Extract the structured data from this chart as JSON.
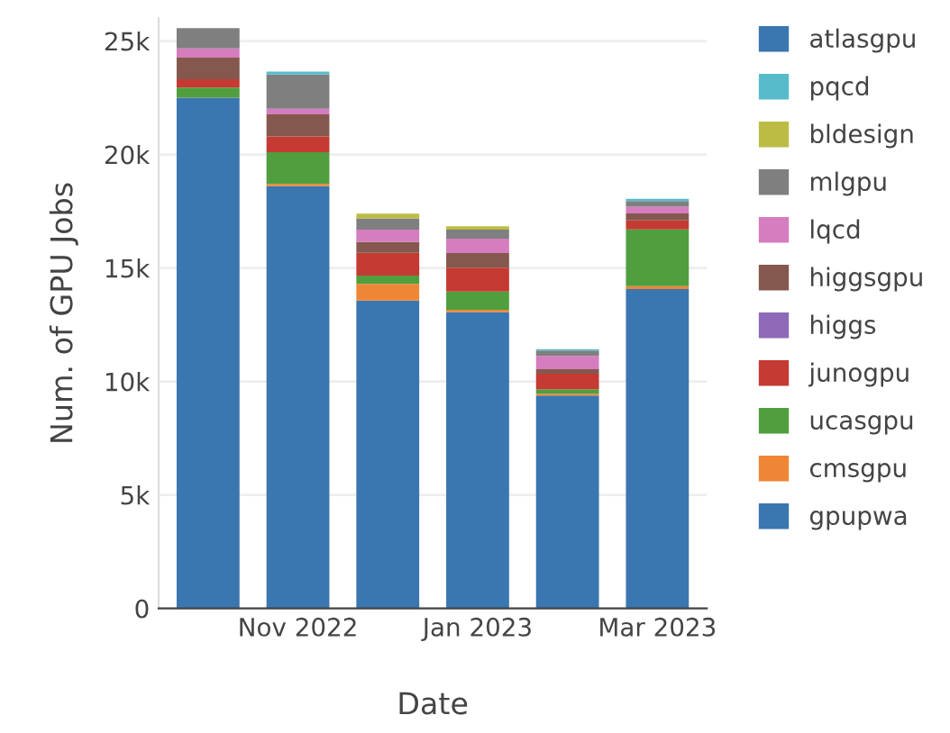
{
  "chart_data": {
    "type": "bar",
    "stacked": true,
    "xlabel": "Date",
    "ylabel": "Num. of GPU Jobs",
    "categories": [
      null,
      "Nov 2022",
      null,
      "Jan 2023",
      null,
      "Mar 2023"
    ],
    "series": [
      {
        "name": "gpupwa",
        "color": "#3a76af",
        "values": [
          22500,
          18600,
          13560,
          13060,
          9380,
          14070
        ]
      },
      {
        "name": "cmsgpu",
        "color": "#ef8636",
        "values": [
          0,
          100,
          740,
          100,
          80,
          130
        ]
      },
      {
        "name": "ucasgpu",
        "color": "#519e3e",
        "values": [
          450,
          1400,
          370,
          800,
          200,
          2500
        ]
      },
      {
        "name": "junogpu",
        "color": "#c53a32",
        "values": [
          370,
          700,
          1000,
          1050,
          680,
          400
        ]
      },
      {
        "name": "higgs",
        "color": "#8d69b8",
        "values": [
          0,
          0,
          0,
          0,
          0,
          0
        ]
      },
      {
        "name": "higgsgpu",
        "color": "#84584e",
        "values": [
          950,
          970,
          470,
          650,
          200,
          300
        ]
      },
      {
        "name": "lqcd",
        "color": "#d57dbe",
        "values": [
          400,
          250,
          550,
          630,
          580,
          300
        ]
      },
      {
        "name": "mlgpu",
        "color": "#7f7f7f",
        "values": [
          900,
          1500,
          500,
          400,
          240,
          250
        ]
      },
      {
        "name": "bldesign",
        "color": "#bcbc45",
        "values": [
          0,
          0,
          200,
          150,
          0,
          0
        ]
      },
      {
        "name": "pqcd",
        "color": "#58bbcc",
        "values": [
          0,
          130,
          0,
          0,
          60,
          100
        ]
      },
      {
        "name": "atlasgpu",
        "color": "#3a76af",
        "values": [
          0,
          0,
          0,
          0,
          0,
          0
        ]
      }
    ],
    "ylim": [
      0,
      26000
    ],
    "yticks": [
      {
        "value": 0,
        "label": "0"
      },
      {
        "value": 5000,
        "label": "5k"
      },
      {
        "value": 10000,
        "label": "10k"
      },
      {
        "value": 15000,
        "label": "15k"
      },
      {
        "value": 20000,
        "label": "20k"
      },
      {
        "value": 25000,
        "label": "25k"
      }
    ],
    "grid": "y",
    "legend": "top right"
  }
}
